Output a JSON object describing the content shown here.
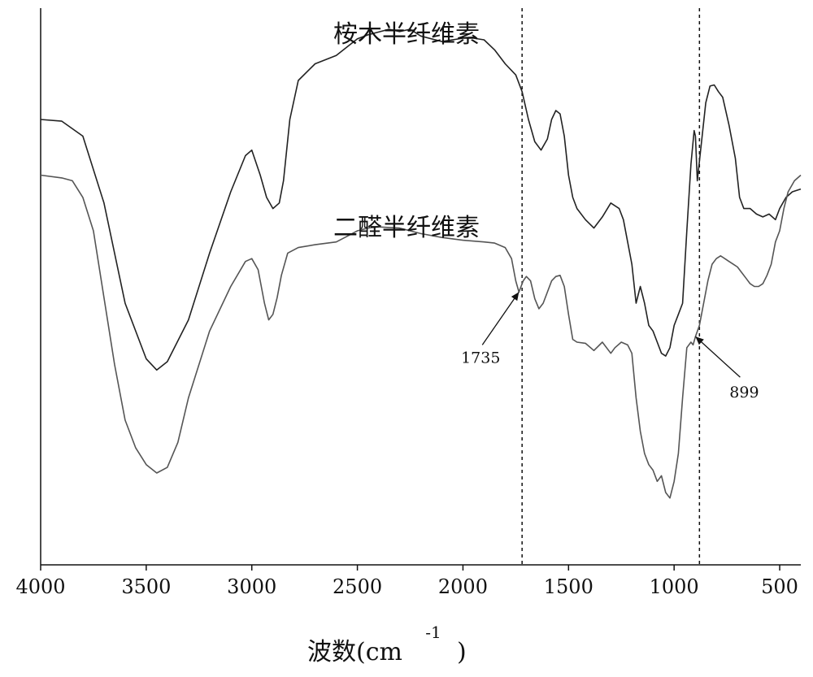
{
  "chart_data": {
    "type": "line",
    "title": "",
    "xlabel": "波数(cm",
    "xlabel_sup": "-1",
    "xlabel_close": ")",
    "ylabel": "",
    "xlim": [
      4000,
      400
    ],
    "x_reversed": true,
    "y_ticks_shown": false,
    "grid": false,
    "x_ticks": [
      4000,
      3500,
      3000,
      2500,
      2000,
      1500,
      1000,
      500
    ],
    "x_tick_labels": [
      "4000",
      "3500",
      "3000",
      "2500",
      "2000",
      "1500",
      "1000",
      "500"
    ],
    "series": [
      {
        "name": "桉木半纤维素",
        "color": "#222222",
        "points": [
          [
            4000,
            0.8
          ],
          [
            3900,
            0.797
          ],
          [
            3800,
            0.77
          ],
          [
            3700,
            0.65
          ],
          [
            3600,
            0.47
          ],
          [
            3500,
            0.37
          ],
          [
            3450,
            0.35
          ],
          [
            3400,
            0.365
          ],
          [
            3300,
            0.44
          ],
          [
            3200,
            0.56
          ],
          [
            3100,
            0.67
          ],
          [
            3030,
            0.735
          ],
          [
            3000,
            0.745
          ],
          [
            2960,
            0.7
          ],
          [
            2930,
            0.66
          ],
          [
            2900,
            0.64
          ],
          [
            2870,
            0.65
          ],
          [
            2850,
            0.69
          ],
          [
            2820,
            0.8
          ],
          [
            2780,
            0.87
          ],
          [
            2700,
            0.9
          ],
          [
            2600,
            0.915
          ],
          [
            2500,
            0.945
          ],
          [
            2450,
            0.952
          ],
          [
            2350,
            0.962
          ],
          [
            2300,
            0.958
          ],
          [
            2250,
            0.962
          ],
          [
            2200,
            0.95
          ],
          [
            2100,
            0.94
          ],
          [
            2000,
            0.946
          ],
          [
            1950,
            0.946
          ],
          [
            1900,
            0.943
          ],
          [
            1850,
            0.925
          ],
          [
            1800,
            0.9
          ],
          [
            1750,
            0.88
          ],
          [
            1720,
            0.85
          ],
          [
            1690,
            0.8
          ],
          [
            1660,
            0.76
          ],
          [
            1630,
            0.745
          ],
          [
            1600,
            0.765
          ],
          [
            1580,
            0.8
          ],
          [
            1560,
            0.816
          ],
          [
            1540,
            0.81
          ],
          [
            1520,
            0.77
          ],
          [
            1500,
            0.7
          ],
          [
            1480,
            0.66
          ],
          [
            1460,
            0.64
          ],
          [
            1420,
            0.62
          ],
          [
            1380,
            0.605
          ],
          [
            1340,
            0.625
          ],
          [
            1300,
            0.65
          ],
          [
            1260,
            0.64
          ],
          [
            1240,
            0.62
          ],
          [
            1220,
            0.58
          ],
          [
            1200,
            0.54
          ],
          [
            1180,
            0.47
          ],
          [
            1160,
            0.5
          ],
          [
            1140,
            0.47
          ],
          [
            1120,
            0.43
          ],
          [
            1100,
            0.42
          ],
          [
            1080,
            0.4
          ],
          [
            1060,
            0.38
          ],
          [
            1040,
            0.375
          ],
          [
            1020,
            0.39
          ],
          [
            1000,
            0.43
          ],
          [
            980,
            0.45
          ],
          [
            960,
            0.47
          ],
          [
            940,
            0.6
          ],
          [
            920,
            0.72
          ],
          [
            905,
            0.78
          ],
          [
            899,
            0.77
          ],
          [
            890,
            0.69
          ],
          [
            870,
            0.76
          ],
          [
            850,
            0.83
          ],
          [
            830,
            0.86
          ],
          [
            810,
            0.862
          ],
          [
            790,
            0.85
          ],
          [
            770,
            0.84
          ],
          [
            740,
            0.79
          ],
          [
            710,
            0.73
          ],
          [
            690,
            0.66
          ],
          [
            670,
            0.64
          ],
          [
            640,
            0.64
          ],
          [
            610,
            0.63
          ],
          [
            580,
            0.625
          ],
          [
            550,
            0.63
          ],
          [
            520,
            0.62
          ],
          [
            500,
            0.64
          ],
          [
            470,
            0.66
          ],
          [
            440,
            0.67
          ],
          [
            400,
            0.675
          ]
        ]
      },
      {
        "name": "二醛半纤维素",
        "color": "#555555",
        "points": [
          [
            4000,
            0.7
          ],
          [
            3900,
            0.695
          ],
          [
            3850,
            0.69
          ],
          [
            3800,
            0.66
          ],
          [
            3750,
            0.6
          ],
          [
            3700,
            0.48
          ],
          [
            3650,
            0.36
          ],
          [
            3600,
            0.26
          ],
          [
            3550,
            0.21
          ],
          [
            3500,
            0.18
          ],
          [
            3450,
            0.165
          ],
          [
            3400,
            0.175
          ],
          [
            3350,
            0.22
          ],
          [
            3300,
            0.3
          ],
          [
            3200,
            0.42
          ],
          [
            3100,
            0.5
          ],
          [
            3030,
            0.545
          ],
          [
            3000,
            0.55
          ],
          [
            2970,
            0.53
          ],
          [
            2940,
            0.47
          ],
          [
            2920,
            0.44
          ],
          [
            2900,
            0.45
          ],
          [
            2880,
            0.48
          ],
          [
            2860,
            0.52
          ],
          [
            2830,
            0.56
          ],
          [
            2780,
            0.57
          ],
          [
            2700,
            0.575
          ],
          [
            2600,
            0.58
          ],
          [
            2550,
            0.59
          ],
          [
            2500,
            0.6
          ],
          [
            2450,
            0.605
          ],
          [
            2400,
            0.607
          ],
          [
            2350,
            0.606
          ],
          [
            2300,
            0.605
          ],
          [
            2200,
            0.595
          ],
          [
            2100,
            0.588
          ],
          [
            2000,
            0.583
          ],
          [
            1900,
            0.58
          ],
          [
            1850,
            0.578
          ],
          [
            1800,
            0.57
          ],
          [
            1770,
            0.55
          ],
          [
            1750,
            0.51
          ],
          [
            1735,
            0.49
          ],
          [
            1715,
            0.51
          ],
          [
            1700,
            0.518
          ],
          [
            1680,
            0.51
          ],
          [
            1660,
            0.478
          ],
          [
            1640,
            0.46
          ],
          [
            1620,
            0.47
          ],
          [
            1600,
            0.49
          ],
          [
            1580,
            0.51
          ],
          [
            1560,
            0.518
          ],
          [
            1540,
            0.52
          ],
          [
            1520,
            0.5
          ],
          [
            1500,
            0.45
          ],
          [
            1480,
            0.405
          ],
          [
            1460,
            0.4
          ],
          [
            1420,
            0.398
          ],
          [
            1380,
            0.385
          ],
          [
            1340,
            0.4
          ],
          [
            1300,
            0.38
          ],
          [
            1280,
            0.39
          ],
          [
            1250,
            0.4
          ],
          [
            1220,
            0.395
          ],
          [
            1200,
            0.38
          ],
          [
            1180,
            0.3
          ],
          [
            1160,
            0.24
          ],
          [
            1140,
            0.2
          ],
          [
            1120,
            0.18
          ],
          [
            1100,
            0.17
          ],
          [
            1080,
            0.15
          ],
          [
            1060,
            0.16
          ],
          [
            1040,
            0.13
          ],
          [
            1020,
            0.12
          ],
          [
            1000,
            0.15
          ],
          [
            980,
            0.2
          ],
          [
            960,
            0.3
          ],
          [
            940,
            0.39
          ],
          [
            920,
            0.4
          ],
          [
            910,
            0.395
          ],
          [
            899,
            0.41
          ],
          [
            880,
            0.43
          ],
          [
            860,
            0.47
          ],
          [
            840,
            0.51
          ],
          [
            820,
            0.54
          ],
          [
            800,
            0.55
          ],
          [
            780,
            0.555
          ],
          [
            760,
            0.55
          ],
          [
            740,
            0.545
          ],
          [
            720,
            0.54
          ],
          [
            700,
            0.535
          ],
          [
            680,
            0.525
          ],
          [
            660,
            0.515
          ],
          [
            640,
            0.505
          ],
          [
            620,
            0.5
          ],
          [
            600,
            0.5
          ],
          [
            580,
            0.505
          ],
          [
            560,
            0.52
          ],
          [
            540,
            0.54
          ],
          [
            520,
            0.58
          ],
          [
            500,
            0.6
          ],
          [
            480,
            0.64
          ],
          [
            460,
            0.67
          ],
          [
            430,
            0.69
          ],
          [
            400,
            0.7
          ]
        ]
      }
    ],
    "vlines": [
      1720,
      880
    ],
    "annotations": [
      {
        "text": "1735",
        "arrow_target": [
          1735,
          0.49
        ],
        "label_side": "below-left"
      },
      {
        "text": "899",
        "arrow_target": [
          899,
          0.41
        ],
        "label_side": "below-right"
      }
    ]
  }
}
